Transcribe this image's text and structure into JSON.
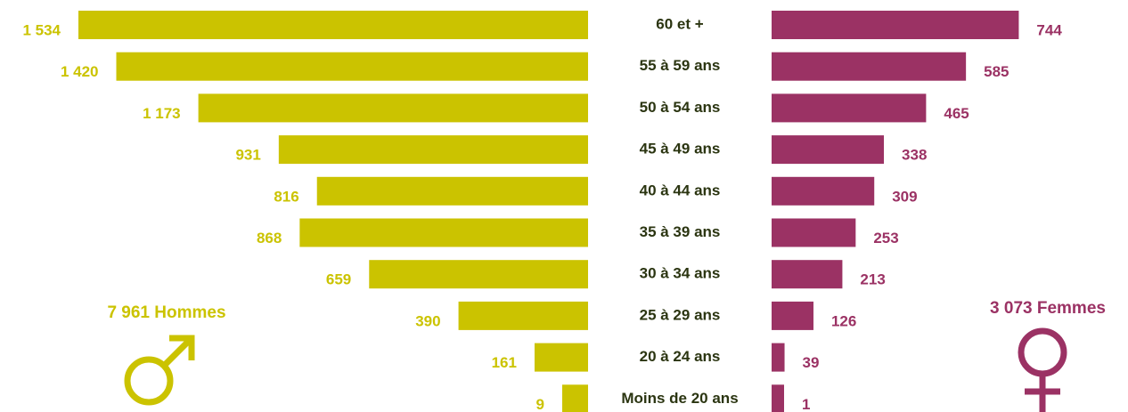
{
  "chart_data": {
    "type": "pyramid",
    "categories": [
      "60 et +",
      "55 à 59 ans",
      "50 à 54 ans",
      "45 à 49 ans",
      "40 à 44 ans",
      "35 à 39 ans",
      "30 à 34 ans",
      "25 à 29 ans",
      "20 à 24 ans",
      "Moins de 20 ans"
    ],
    "series": [
      {
        "color": "#cbc300",
        "values": [
          1534,
          1420,
          1173,
          931,
          816,
          868,
          659,
          390,
          161,
          9
        ],
        "value_labels": [
          "1 534",
          "1 420",
          "1 173",
          "931",
          "816",
          "868",
          "659",
          "390",
          "161",
          "9"
        ]
      },
      {
        "color": "#9b3264",
        "values": [
          744,
          585,
          465,
          338,
          309,
          253,
          213,
          126,
          39,
          1
        ]
      }
    ],
    "annotations": [
      "7 961 Hommes",
      "3 073 Femmes"
    ]
  }
}
